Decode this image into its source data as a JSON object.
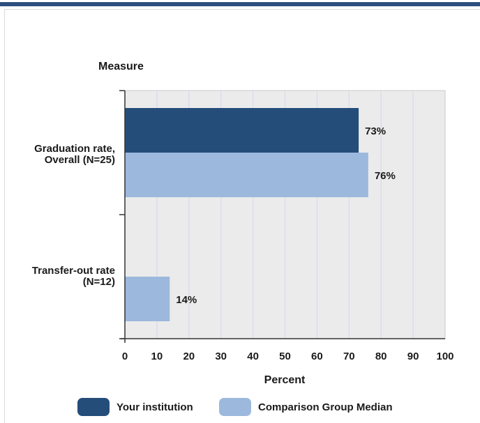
{
  "colors": {
    "top_bar": "#2b4e7e",
    "plot_background": "#ebebeb",
    "grid": "#d6d6ee",
    "axis": "#333333"
  },
  "chart_data": {
    "type": "bar",
    "orientation": "horizontal",
    "title": "",
    "category_axis_title": "Measure",
    "value_axis_title": "Percent",
    "categories": [
      "Graduation rate, Overall (N=25)",
      "Transfer-out rate (N=12)"
    ],
    "category_label_lines": [
      [
        "Graduation rate,",
        "Overall (N=25)"
      ],
      [
        "Transfer-out rate",
        "(N=12)"
      ]
    ],
    "xlim": [
      0,
      100
    ],
    "ticks": [
      0,
      10,
      20,
      30,
      40,
      50,
      60,
      70,
      80,
      90,
      100
    ],
    "grid": true,
    "legend_position": "bottom",
    "series": [
      {
        "name": "Your institution",
        "color": "#244d7a",
        "values": [
          73,
          null
        ],
        "labels": [
          "73%",
          ""
        ]
      },
      {
        "name": "Comparison Group Median",
        "color": "#9cb9dd",
        "values": [
          76,
          14
        ],
        "labels": [
          "76%",
          "14%"
        ]
      }
    ]
  }
}
